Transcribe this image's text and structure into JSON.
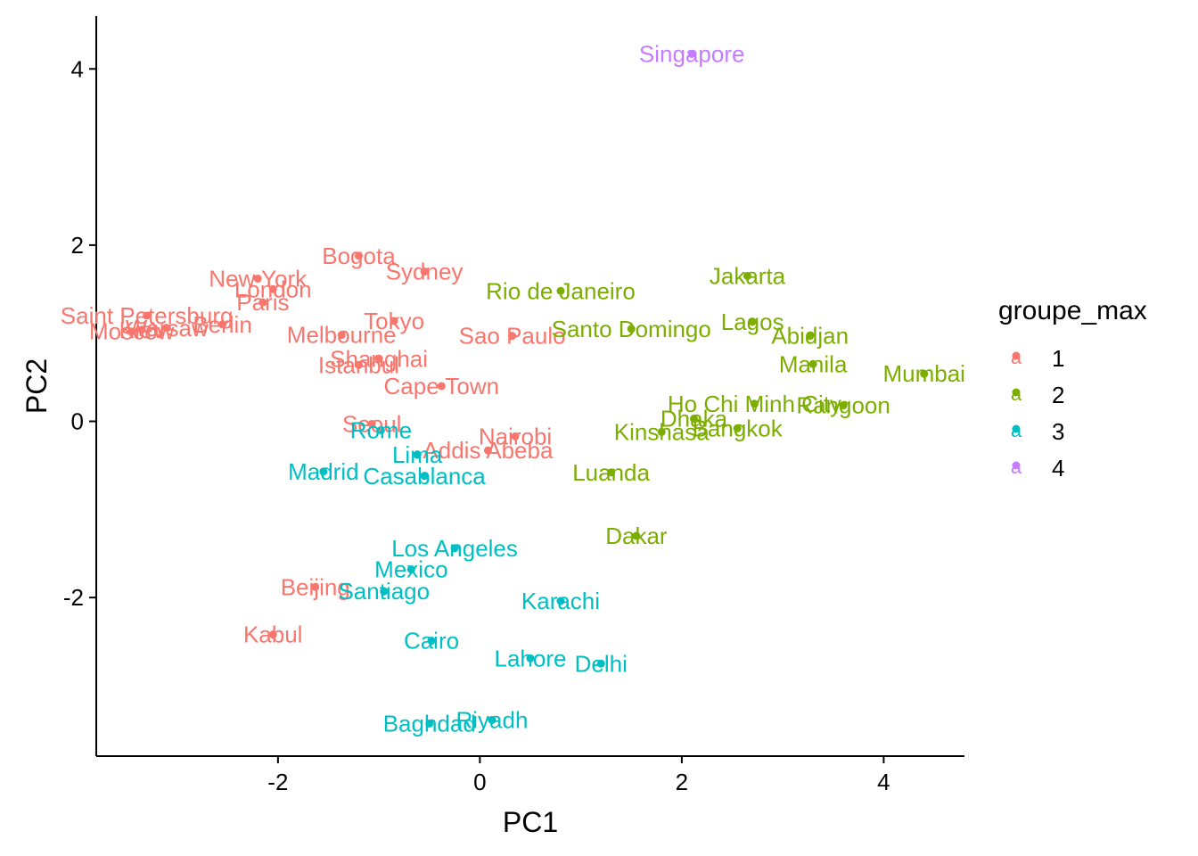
{
  "chart_data": {
    "type": "scatter",
    "title": "",
    "xlabel": "PC1",
    "ylabel": "PC2",
    "xlim": [
      -3.8,
      4.8
    ],
    "ylim": [
      -3.8,
      4.6
    ],
    "x_ticks": [
      -2,
      0,
      2,
      4
    ],
    "y_ticks": [
      -2,
      0,
      2,
      4
    ],
    "grid": false,
    "legend": {
      "title": "groupe_max",
      "placement": "right",
      "key_glyph": "a",
      "entries": [
        "1",
        "2",
        "3",
        "4"
      ]
    },
    "colors": {
      "1": "#F8766D",
      "2": "#7CAE00",
      "3": "#00BFC4",
      "4": "#C77CFF"
    },
    "points": [
      {
        "label": "Singapore",
        "group": "4",
        "x": 2.1,
        "y": 4.17
      },
      {
        "label": "Bogota",
        "group": "1",
        "x": -1.2,
        "y": 1.88
      },
      {
        "label": "Sydney",
        "group": "1",
        "x": -0.55,
        "y": 1.7
      },
      {
        "label": "New York",
        "group": "1",
        "x": -2.2,
        "y": 1.62
      },
      {
        "label": "London",
        "group": "1",
        "x": -2.05,
        "y": 1.5
      },
      {
        "label": "Paris",
        "group": "1",
        "x": -2.15,
        "y": 1.35
      },
      {
        "label": "Saint Petersburg",
        "group": "1",
        "x": -3.3,
        "y": 1.2
      },
      {
        "label": "Berlin",
        "group": "1",
        "x": -2.55,
        "y": 1.1
      },
      {
        "label": "Warsaw",
        "group": "1",
        "x": -3.1,
        "y": 1.06
      },
      {
        "label": "Kiev",
        "group": "1",
        "x": -3.35,
        "y": 1.04
      },
      {
        "label": "Moscow",
        "group": "1",
        "x": -3.45,
        "y": 1.02
      },
      {
        "label": "Tokyo",
        "group": "1",
        "x": -0.85,
        "y": 1.14
      },
      {
        "label": "Melbourne",
        "group": "1",
        "x": -1.37,
        "y": 0.98
      },
      {
        "label": "Sao Paulo",
        "group": "1",
        "x": 0.32,
        "y": 0.97
      },
      {
        "label": "Shanghai",
        "group": "1",
        "x": -1.0,
        "y": 0.71
      },
      {
        "label": "Istanbul",
        "group": "1",
        "x": -1.2,
        "y": 0.64
      },
      {
        "label": "Cape Town",
        "group": "1",
        "x": -0.38,
        "y": 0.4
      },
      {
        "label": "Seoul",
        "group": "1",
        "x": -1.07,
        "y": -0.03
      },
      {
        "label": "Nairobi",
        "group": "1",
        "x": 0.35,
        "y": -0.17
      },
      {
        "label": "Addis Abeba",
        "group": "1",
        "x": 0.08,
        "y": -0.33
      },
      {
        "label": "Beijing",
        "group": "1",
        "x": -1.63,
        "y": -1.88
      },
      {
        "label": "Kabul",
        "group": "1",
        "x": -2.05,
        "y": -2.42
      },
      {
        "label": "Jakarta",
        "group": "2",
        "x": 2.65,
        "y": 1.65
      },
      {
        "label": "Rio de Janeiro",
        "group": "2",
        "x": 0.8,
        "y": 1.48
      },
      {
        "label": "Lagos",
        "group": "2",
        "x": 2.7,
        "y": 1.13
      },
      {
        "label": "Santo Domingo",
        "group": "2",
        "x": 1.5,
        "y": 1.05
      },
      {
        "label": "Abidjan",
        "group": "2",
        "x": 3.27,
        "y": 0.97
      },
      {
        "label": "Manila",
        "group": "2",
        "x": 3.3,
        "y": 0.65
      },
      {
        "label": "Mumbai",
        "group": "2",
        "x": 4.4,
        "y": 0.54
      },
      {
        "label": "Ho Chi Minh City",
        "group": "2",
        "x": 2.72,
        "y": 0.2
      },
      {
        "label": "Rangoon",
        "group": "2",
        "x": 3.6,
        "y": 0.18
      },
      {
        "label": "Dhaka",
        "group": "2",
        "x": 2.12,
        "y": 0.03
      },
      {
        "label": "Bangkok",
        "group": "2",
        "x": 2.55,
        "y": -0.08
      },
      {
        "label": "Kinshasa",
        "group": "2",
        "x": 1.8,
        "y": -0.12
      },
      {
        "label": "Luanda",
        "group": "2",
        "x": 1.3,
        "y": -0.58
      },
      {
        "label": "Dakar",
        "group": "2",
        "x": 1.55,
        "y": -1.3
      },
      {
        "label": "Rome",
        "group": "3",
        "x": -0.98,
        "y": -0.1
      },
      {
        "label": "Lima",
        "group": "3",
        "x": -0.62,
        "y": -0.38
      },
      {
        "label": "Madrid",
        "group": "3",
        "x": -1.55,
        "y": -0.57
      },
      {
        "label": "Casablanca",
        "group": "3",
        "x": -0.55,
        "y": -0.62
      },
      {
        "label": "Los Angeles",
        "group": "3",
        "x": -0.25,
        "y": -1.44
      },
      {
        "label": "Mexico",
        "group": "3",
        "x": -0.68,
        "y": -1.68
      },
      {
        "label": "Santiago",
        "group": "3",
        "x": -0.95,
        "y": -1.93
      },
      {
        "label": "Karachi",
        "group": "3",
        "x": 0.8,
        "y": -2.04
      },
      {
        "label": "Cairo",
        "group": "3",
        "x": -0.48,
        "y": -2.49
      },
      {
        "label": "Lahore",
        "group": "3",
        "x": 0.5,
        "y": -2.69
      },
      {
        "label": "Delhi",
        "group": "3",
        "x": 1.2,
        "y": -2.75
      },
      {
        "label": "Riyadh",
        "group": "3",
        "x": 0.12,
        "y": -3.39
      },
      {
        "label": "Baghdad",
        "group": "3",
        "x": -0.5,
        "y": -3.43
      }
    ]
  }
}
